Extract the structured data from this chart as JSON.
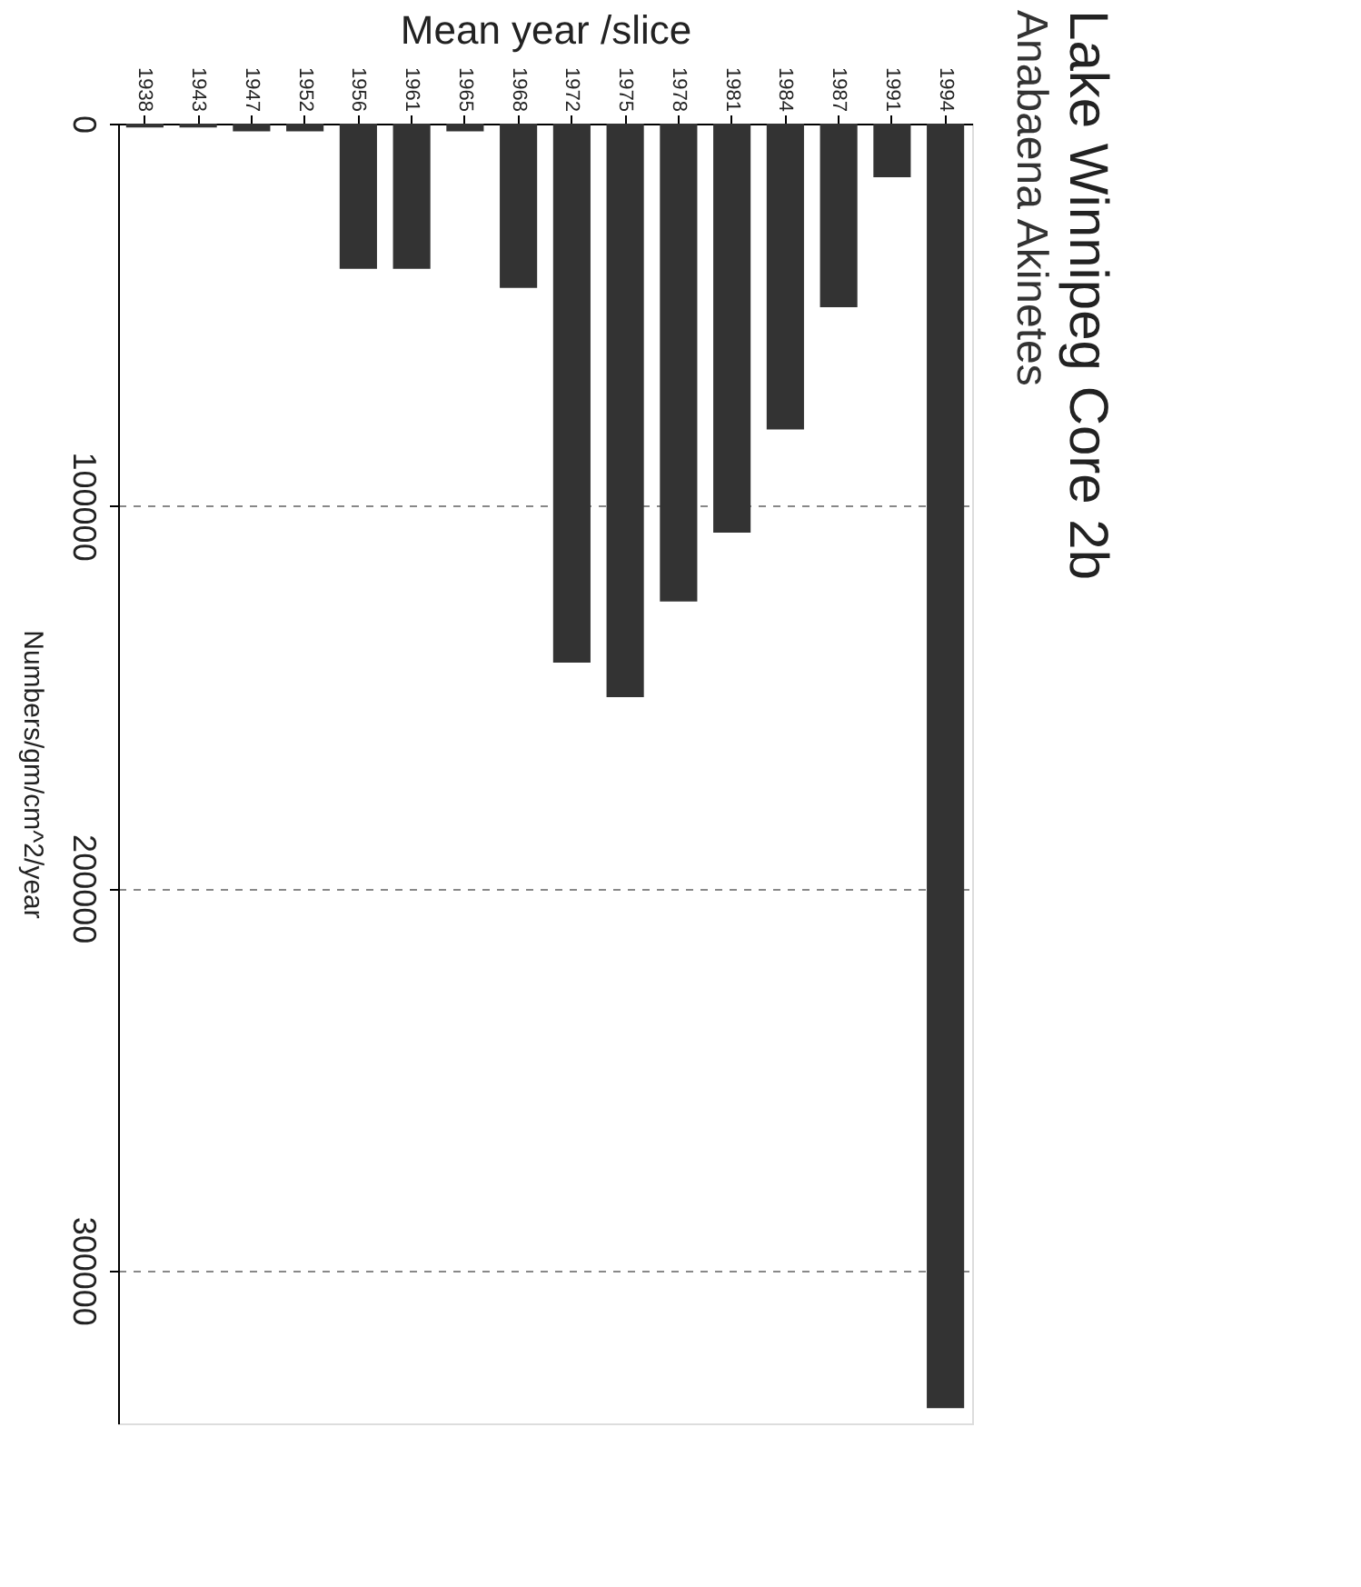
{
  "chart_data": {
    "type": "bar",
    "title": "Lake Winnipeg Core 2b",
    "subtitle": "Anabaena Akinetes",
    "xlabel": "Mean year /slice",
    "ylabel": "Numbers/gm/cm^2/year",
    "categories": [
      "1938",
      "1943",
      "1947",
      "1952",
      "1956",
      "1961",
      "1965",
      "1968",
      "1972",
      "1975",
      "1978",
      "1981",
      "1984",
      "1987",
      "1991",
      "1994"
    ],
    "values": [
      1000,
      1000,
      2000,
      2000,
      38000,
      38000,
      2000,
      43000,
      141000,
      150000,
      125000,
      107000,
      80000,
      48000,
      14000,
      336000
    ],
    "color": "#333333",
    "ylim": [
      340000,
      0
    ],
    "yticks": [
      0,
      100000,
      200000,
      300000
    ],
    "grid": "y"
  }
}
